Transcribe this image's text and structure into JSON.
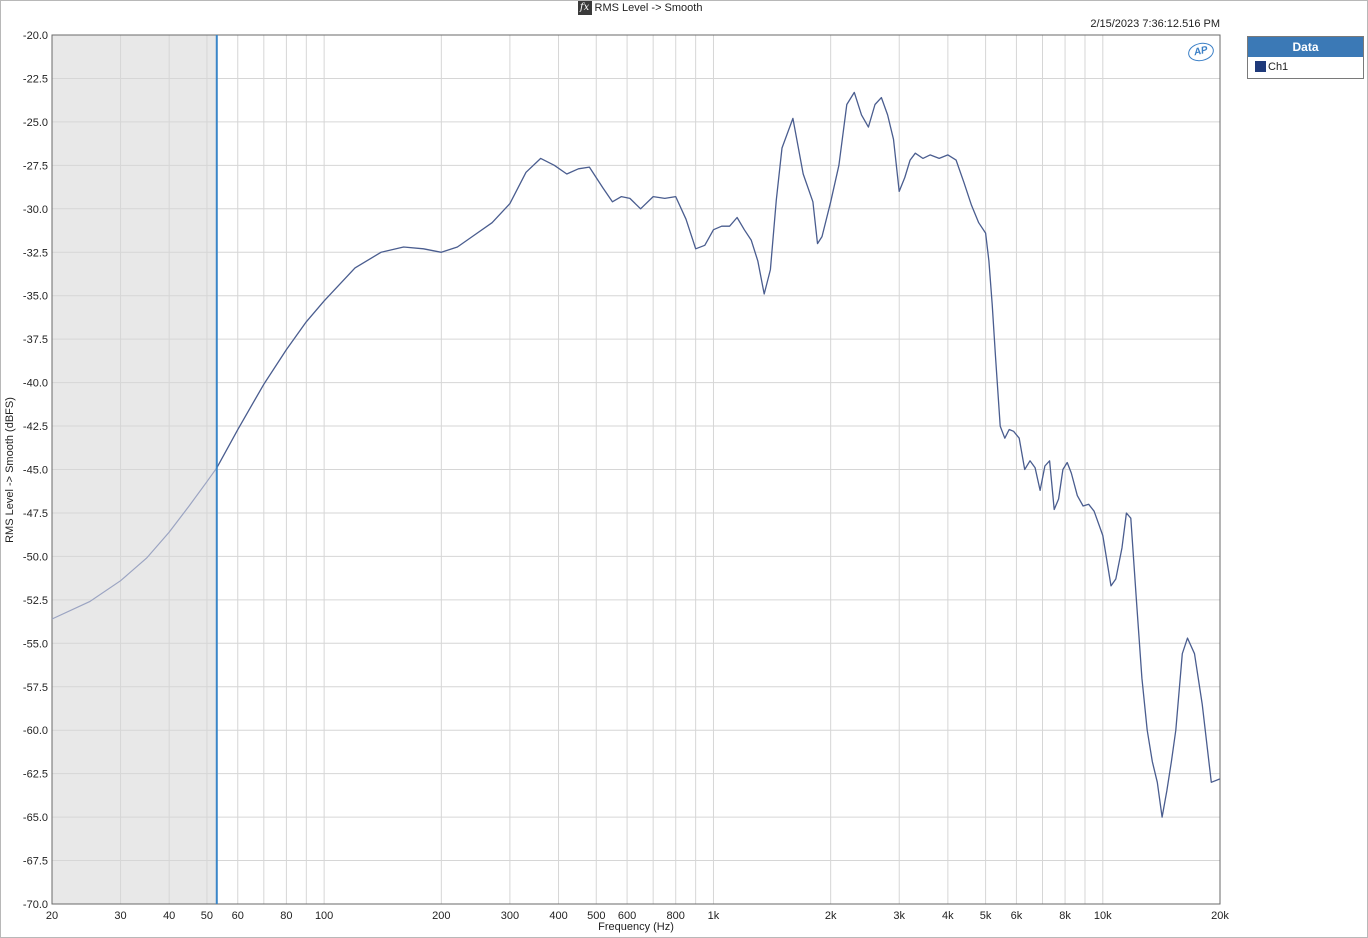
{
  "title": "RMS Level -> Smooth",
  "title_icon": "fx-icon",
  "timestamp": "2/15/2023 7:36:12.516 PM",
  "logo_text": "AP",
  "legend": {
    "header": "Data",
    "items": [
      {
        "label": "Ch1",
        "color": "#1f3a7a"
      }
    ]
  },
  "chart_data": {
    "type": "line",
    "title": "RMS Level -> Smooth",
    "xlabel": "Frequency (Hz)",
    "ylabel": "RMS Level -> Smooth (dBFS)",
    "xscale": "log",
    "xlim": [
      20,
      20000
    ],
    "ylim": [
      -70,
      -20
    ],
    "grid": true,
    "legend_position": "outside-top-right",
    "x_ticks": [
      {
        "v": 20,
        "label": "20"
      },
      {
        "v": 30,
        "label": "30"
      },
      {
        "v": 40,
        "label": "40"
      },
      {
        "v": 50,
        "label": "50"
      },
      {
        "v": 60,
        "label": "60"
      },
      {
        "v": 80,
        "label": "80"
      },
      {
        "v": 100,
        "label": "100"
      },
      {
        "v": 200,
        "label": "200"
      },
      {
        "v": 300,
        "label": "300"
      },
      {
        "v": 400,
        "label": "400"
      },
      {
        "v": 500,
        "label": "500"
      },
      {
        "v": 600,
        "label": "600"
      },
      {
        "v": 800,
        "label": "800"
      },
      {
        "v": 1000,
        "label": "1k"
      },
      {
        "v": 2000,
        "label": "2k"
      },
      {
        "v": 3000,
        "label": "3k"
      },
      {
        "v": 4000,
        "label": "4k"
      },
      {
        "v": 5000,
        "label": "5k"
      },
      {
        "v": 6000,
        "label": "6k"
      },
      {
        "v": 8000,
        "label": "8k"
      },
      {
        "v": 10000,
        "label": "10k"
      },
      {
        "v": 20000,
        "label": "20k"
      }
    ],
    "y_ticks": [
      {
        "v": -20,
        "label": "-20.0"
      },
      {
        "v": -22.5,
        "label": "-22.5"
      },
      {
        "v": -25,
        "label": "-25.0"
      },
      {
        "v": -27.5,
        "label": "-27.5"
      },
      {
        "v": -30,
        "label": "-30.0"
      },
      {
        "v": -32.5,
        "label": "-32.5"
      },
      {
        "v": -35,
        "label": "-35.0"
      },
      {
        "v": -37.5,
        "label": "-37.5"
      },
      {
        "v": -40,
        "label": "-40.0"
      },
      {
        "v": -42.5,
        "label": "-42.5"
      },
      {
        "v": -45,
        "label": "-45.0"
      },
      {
        "v": -47.5,
        "label": "-47.5"
      },
      {
        "v": -50,
        "label": "-50.0"
      },
      {
        "v": -52.5,
        "label": "-52.5"
      },
      {
        "v": -55,
        "label": "-55.0"
      },
      {
        "v": -57.5,
        "label": "-57.5"
      },
      {
        "v": -60,
        "label": "-60.0"
      },
      {
        "v": -62.5,
        "label": "-62.5"
      },
      {
        "v": -65,
        "label": "-65.0"
      },
      {
        "v": -67.5,
        "label": "-67.5"
      },
      {
        "v": -70,
        "label": "-70.0"
      }
    ],
    "shaded_region_x": [
      20,
      53
    ],
    "cursor_x": 53,
    "series": [
      {
        "name": "Ch1",
        "color": "#4a5d8f",
        "faded_color": "#9ba4c2",
        "points": [
          [
            20,
            -53.6
          ],
          [
            25,
            -52.6
          ],
          [
            30,
            -51.4
          ],
          [
            35,
            -50.1
          ],
          [
            40,
            -48.6
          ],
          [
            45,
            -47.1
          ],
          [
            50,
            -45.7
          ],
          [
            53,
            -44.9
          ],
          [
            60,
            -42.7
          ],
          [
            70,
            -40.1
          ],
          [
            80,
            -38.1
          ],
          [
            90,
            -36.5
          ],
          [
            100,
            -35.3
          ],
          [
            120,
            -33.4
          ],
          [
            140,
            -32.5
          ],
          [
            160,
            -32.2
          ],
          [
            180,
            -32.3
          ],
          [
            200,
            -32.5
          ],
          [
            220,
            -32.2
          ],
          [
            240,
            -31.6
          ],
          [
            270,
            -30.8
          ],
          [
            300,
            -29.7
          ],
          [
            330,
            -27.9
          ],
          [
            360,
            -27.1
          ],
          [
            390,
            -27.5
          ],
          [
            420,
            -28.0
          ],
          [
            450,
            -27.7
          ],
          [
            480,
            -27.6
          ],
          [
            520,
            -28.8
          ],
          [
            550,
            -29.6
          ],
          [
            580,
            -29.3
          ],
          [
            610,
            -29.4
          ],
          [
            650,
            -30.0
          ],
          [
            700,
            -29.3
          ],
          [
            750,
            -29.4
          ],
          [
            800,
            -29.3
          ],
          [
            850,
            -30.6
          ],
          [
            900,
            -32.3
          ],
          [
            950,
            -32.1
          ],
          [
            1000,
            -31.2
          ],
          [
            1050,
            -31.0
          ],
          [
            1100,
            -31.0
          ],
          [
            1150,
            -30.5
          ],
          [
            1200,
            -31.2
          ],
          [
            1250,
            -31.8
          ],
          [
            1300,
            -33.0
          ],
          [
            1350,
            -34.9
          ],
          [
            1400,
            -33.5
          ],
          [
            1450,
            -29.5
          ],
          [
            1500,
            -26.5
          ],
          [
            1600,
            -24.8
          ],
          [
            1700,
            -28.0
          ],
          [
            1800,
            -29.6
          ],
          [
            1850,
            -32.0
          ],
          [
            1900,
            -31.6
          ],
          [
            2000,
            -29.6
          ],
          [
            2100,
            -27.5
          ],
          [
            2200,
            -24.0
          ],
          [
            2300,
            -23.3
          ],
          [
            2400,
            -24.6
          ],
          [
            2500,
            -25.3
          ],
          [
            2600,
            -24.0
          ],
          [
            2700,
            -23.6
          ],
          [
            2800,
            -24.6
          ],
          [
            2900,
            -26.0
          ],
          [
            3000,
            -29.0
          ],
          [
            3100,
            -28.2
          ],
          [
            3200,
            -27.2
          ],
          [
            3300,
            -26.8
          ],
          [
            3450,
            -27.1
          ],
          [
            3600,
            -26.9
          ],
          [
            3800,
            -27.1
          ],
          [
            4000,
            -26.9
          ],
          [
            4200,
            -27.2
          ],
          [
            4400,
            -28.5
          ],
          [
            4600,
            -29.8
          ],
          [
            4800,
            -30.8
          ],
          [
            5000,
            -31.4
          ],
          [
            5100,
            -33.0
          ],
          [
            5200,
            -35.5
          ],
          [
            5300,
            -38.5
          ],
          [
            5450,
            -42.5
          ],
          [
            5600,
            -43.2
          ],
          [
            5750,
            -42.7
          ],
          [
            5900,
            -42.8
          ],
          [
            6100,
            -43.2
          ],
          [
            6300,
            -45.0
          ],
          [
            6500,
            -44.5
          ],
          [
            6700,
            -44.9
          ],
          [
            6900,
            -46.2
          ],
          [
            7100,
            -44.8
          ],
          [
            7300,
            -44.5
          ],
          [
            7500,
            -47.3
          ],
          [
            7700,
            -46.7
          ],
          [
            7900,
            -45.0
          ],
          [
            8100,
            -44.6
          ],
          [
            8300,
            -45.2
          ],
          [
            8600,
            -46.5
          ],
          [
            8900,
            -47.1
          ],
          [
            9200,
            -47.0
          ],
          [
            9500,
            -47.4
          ],
          [
            10000,
            -48.8
          ],
          [
            10500,
            -51.7
          ],
          [
            10800,
            -51.3
          ],
          [
            11200,
            -49.5
          ],
          [
            11500,
            -47.5
          ],
          [
            11800,
            -47.8
          ],
          [
            12200,
            -52.5
          ],
          [
            12600,
            -57.0
          ],
          [
            13000,
            -60.0
          ],
          [
            13400,
            -61.8
          ],
          [
            13800,
            -63.0
          ],
          [
            14200,
            -65.0
          ],
          [
            14600,
            -63.5
          ],
          [
            15000,
            -61.8
          ],
          [
            15400,
            -60.0
          ],
          [
            16000,
            -55.6
          ],
          [
            16500,
            -54.7
          ],
          [
            17200,
            -55.6
          ],
          [
            18000,
            -58.5
          ],
          [
            19000,
            -63.0
          ],
          [
            20000,
            -62.8
          ]
        ]
      }
    ]
  }
}
